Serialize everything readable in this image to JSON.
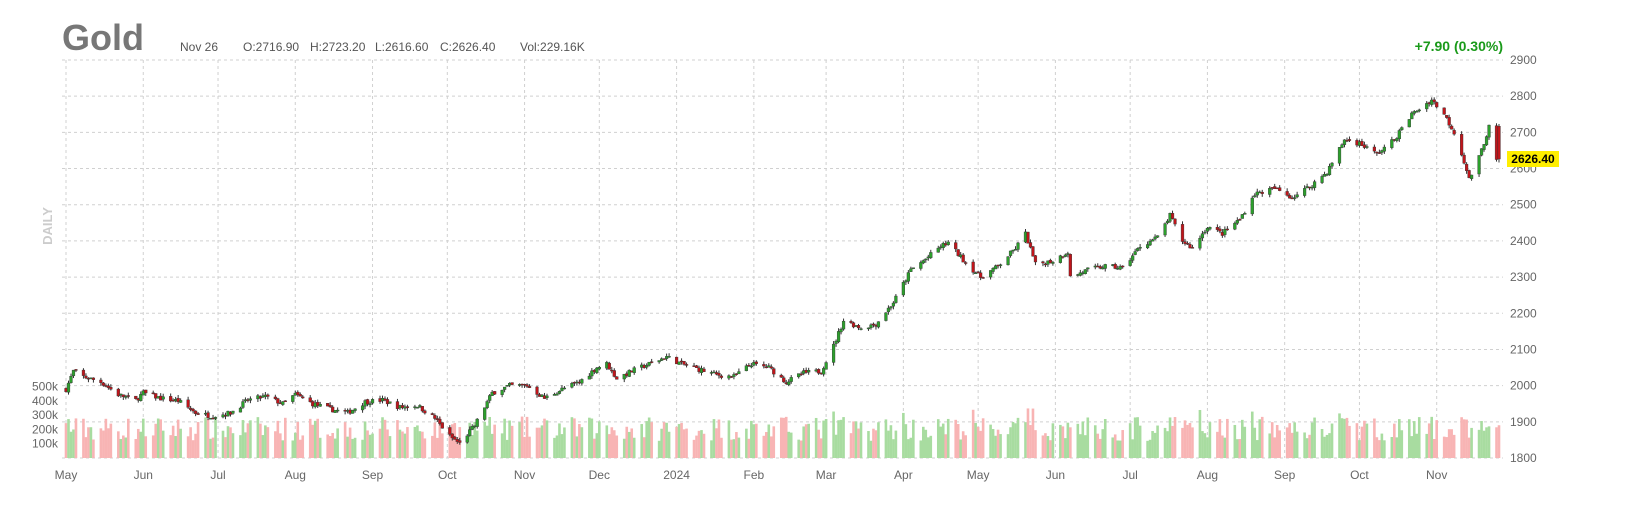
{
  "header": {
    "symbol": "Gold",
    "date": "Nov 26",
    "open": "O:2716.90",
    "high": "H:2723.20",
    "low": "L:2616.60",
    "close": "C:2626.40",
    "volume": "Vol:229.16K",
    "change": "+7.90 (0.30%)",
    "period": "DAILY",
    "last_price": "2626.40"
  },
  "colors": {
    "up": "#2ca02c",
    "down": "#c0151b",
    "vol_up": "#a8dca0",
    "vol_down": "#f8b4b4",
    "change": "#1a9a1a",
    "price_tag": "#ffee00"
  },
  "chart_data": {
    "type": "candlestick",
    "period": "daily",
    "price_axis": {
      "ticks": [
        1800,
        1900,
        2000,
        2100,
        2200,
        2300,
        2400,
        2500,
        2600,
        2700,
        2800,
        2900
      ],
      "ylim": [
        1800,
        2900
      ]
    },
    "volume_axis": {
      "ticks": [
        "100k",
        "200k",
        "300k",
        "400k",
        "500k"
      ],
      "values": [
        100000,
        200000,
        300000,
        400000,
        500000
      ]
    },
    "x_labels": [
      "May",
      "Jun",
      "Jul",
      "Aug",
      "Sep",
      "Oct",
      "Nov",
      "Dec",
      "2024",
      "Feb",
      "Mar",
      "Apr",
      "May",
      "Jun",
      "Jul",
      "Aug",
      "Sep",
      "Oct",
      "Nov"
    ],
    "x_range": [
      "2023-05-01",
      "2024-11-26"
    ],
    "close_path": [
      [
        "2023-05-01",
        1990
      ],
      [
        "2023-05-04",
        2040
      ],
      [
        "2023-05-08",
        2025
      ],
      [
        "2023-05-15",
        2010
      ],
      [
        "2023-05-22",
        1975
      ],
      [
        "2023-05-29",
        1960
      ],
      [
        "2023-06-01",
        1980
      ],
      [
        "2023-06-08",
        1965
      ],
      [
        "2023-06-15",
        1958
      ],
      [
        "2023-06-22",
        1925
      ],
      [
        "2023-06-29",
        1915
      ],
      [
        "2023-07-06",
        1925
      ],
      [
        "2023-07-13",
        1960
      ],
      [
        "2023-07-20",
        1970
      ],
      [
        "2023-07-27",
        1950
      ],
      [
        "2023-08-01",
        1975
      ],
      [
        "2023-08-08",
        1950
      ],
      [
        "2023-08-15",
        1935
      ],
      [
        "2023-08-22",
        1925
      ],
      [
        "2023-08-29",
        1955
      ],
      [
        "2023-09-05",
        1960
      ],
      [
        "2023-09-12",
        1940
      ],
      [
        "2023-09-19",
        1945
      ],
      [
        "2023-09-26",
        1910
      ],
      [
        "2023-10-02",
        1860
      ],
      [
        "2023-10-06",
        1840
      ],
      [
        "2023-10-12",
        1890
      ],
      [
        "2023-10-19",
        1980
      ],
      [
        "2023-10-26",
        2000
      ],
      [
        "2023-11-02",
        2000
      ],
      [
        "2023-11-09",
        1965
      ],
      [
        "2023-11-16",
        1990
      ],
      [
        "2023-11-23",
        2010
      ],
      [
        "2023-11-30",
        2050
      ],
      [
        "2023-12-04",
        2060
      ],
      [
        "2023-12-08",
        2020
      ],
      [
        "2023-12-14",
        2040
      ],
      [
        "2023-12-21",
        2060
      ],
      [
        "2023-12-28",
        2080
      ],
      [
        "2024-01-03",
        2060
      ],
      [
        "2024-01-10",
        2045
      ],
      [
        "2024-01-17",
        2030
      ],
      [
        "2024-01-24",
        2025
      ],
      [
        "2024-01-31",
        2060
      ],
      [
        "2024-02-07",
        2050
      ],
      [
        "2024-02-14",
        2010
      ],
      [
        "2024-02-21",
        2035
      ],
      [
        "2024-02-28",
        2040
      ],
      [
        "2024-03-04",
        2110
      ],
      [
        "2024-03-08",
        2180
      ],
      [
        "2024-03-15",
        2160
      ],
      [
        "2024-03-21",
        2170
      ],
      [
        "2024-03-28",
        2230
      ],
      [
        "2024-04-04",
        2320
      ],
      [
        "2024-04-10",
        2350
      ],
      [
        "2024-04-16",
        2385
      ],
      [
        "2024-04-19",
        2395
      ],
      [
        "2024-04-26",
        2340
      ],
      [
        "2024-05-02",
        2300
      ],
      [
        "2024-05-09",
        2330
      ],
      [
        "2024-05-16",
        2380
      ],
      [
        "2024-05-20",
        2420
      ],
      [
        "2024-05-24",
        2335
      ],
      [
        "2024-05-31",
        2345
      ],
      [
        "2024-06-06",
        2370
      ],
      [
        "2024-06-07",
        2300
      ],
      [
        "2024-06-14",
        2320
      ],
      [
        "2024-06-21",
        2330
      ],
      [
        "2024-06-28",
        2325
      ],
      [
        "2024-07-05",
        2385
      ],
      [
        "2024-07-12",
        2410
      ],
      [
        "2024-07-17",
        2470
      ],
      [
        "2024-07-22",
        2400
      ],
      [
        "2024-07-26",
        2380
      ],
      [
        "2024-08-01",
        2440
      ],
      [
        "2024-08-07",
        2420
      ],
      [
        "2024-08-14",
        2460
      ],
      [
        "2024-08-20",
        2530
      ],
      [
        "2024-08-28",
        2545
      ],
      [
        "2024-09-04",
        2520
      ],
      [
        "2024-09-11",
        2550
      ],
      [
        "2024-09-18",
        2590
      ],
      [
        "2024-09-25",
        2680
      ],
      [
        "2024-10-01",
        2670
      ],
      [
        "2024-10-08",
        2640
      ],
      [
        "2024-10-15",
        2680
      ],
      [
        "2024-10-22",
        2750
      ],
      [
        "2024-10-30",
        2790
      ],
      [
        "2024-11-04",
        2750
      ],
      [
        "2024-11-08",
        2700
      ],
      [
        "2024-11-12",
        2620
      ],
      [
        "2024-11-14",
        2570
      ],
      [
        "2024-11-18",
        2630
      ],
      [
        "2024-11-22",
        2715
      ],
      [
        "2024-11-25",
        2620
      ],
      [
        "2024-11-26",
        2626.4
      ]
    ],
    "last_candle": {
      "date": "2024-11-26",
      "open": 2716.9,
      "high": 2723.2,
      "low": 2616.6,
      "close": 2626.4,
      "volume": 229160
    },
    "grid": true
  }
}
